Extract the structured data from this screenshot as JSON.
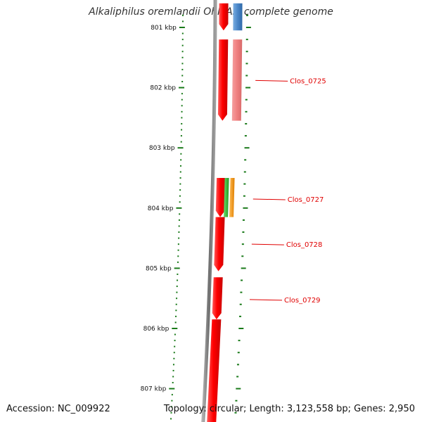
{
  "title": "Alkaliphilus oremlandii OhILAs, complete genome",
  "footer": {
    "accession": "Accession: NC_009922",
    "topology": "Topology: circular; Length: 3,123,558 bp; Genes: 2,950"
  },
  "scale": {
    "ticks": [
      {
        "label": "801 kbp",
        "kbp": 801
      },
      {
        "label": "802 kbp",
        "kbp": 802
      },
      {
        "label": "803 kbp",
        "kbp": 803
      },
      {
        "label": "804 kbp",
        "kbp": 804
      },
      {
        "label": "805 kbp",
        "kbp": 805
      },
      {
        "label": "806 kbp",
        "kbp": 806
      },
      {
        "label": "807 kbp",
        "kbp": 807
      }
    ]
  },
  "colors": {
    "cds": "#ff0000",
    "cds_light": "#f08080",
    "blue_feature": "#4a86c8",
    "green_feature": "#33bb33",
    "orange_feature": "#ff9900",
    "backbone": "#808080",
    "tick_green": "#1a7a1a",
    "label_red": "#e00000"
  },
  "features": {
    "forward_strand": [
      {
        "start_kbp": 800.6,
        "end_kbp": 801.05
      },
      {
        "start_kbp": 801.2,
        "end_kbp": 802.55
      },
      {
        "start_kbp": 803.5,
        "end_kbp": 804.15
      },
      {
        "start_kbp": 804.15,
        "end_kbp": 805.05
      },
      {
        "start_kbp": 805.15,
        "end_kbp": 805.85
      },
      {
        "start_kbp": 805.85,
        "end_kbp": 807.6
      }
    ],
    "ring2": [
      {
        "start_kbp": 800.6,
        "end_kbp": 801.05,
        "color": "blue_feature"
      },
      {
        "start_kbp": 801.2,
        "end_kbp": 802.55,
        "color": "cds_light"
      }
    ],
    "ring3": [
      {
        "start_kbp": 803.5,
        "end_kbp": 804.15,
        "color": "green_feature"
      },
      {
        "start_kbp": 803.5,
        "end_kbp": 804.15,
        "color": "orange_feature"
      }
    ]
  },
  "gene_labels": [
    {
      "label": "Clos_0725",
      "kbp": 801.88
    },
    {
      "label": "Clos_0727",
      "kbp": 803.85
    },
    {
      "label": "Clos_0728",
      "kbp": 804.6
    },
    {
      "label": "Clos_0729",
      "kbp": 805.52
    }
  ]
}
